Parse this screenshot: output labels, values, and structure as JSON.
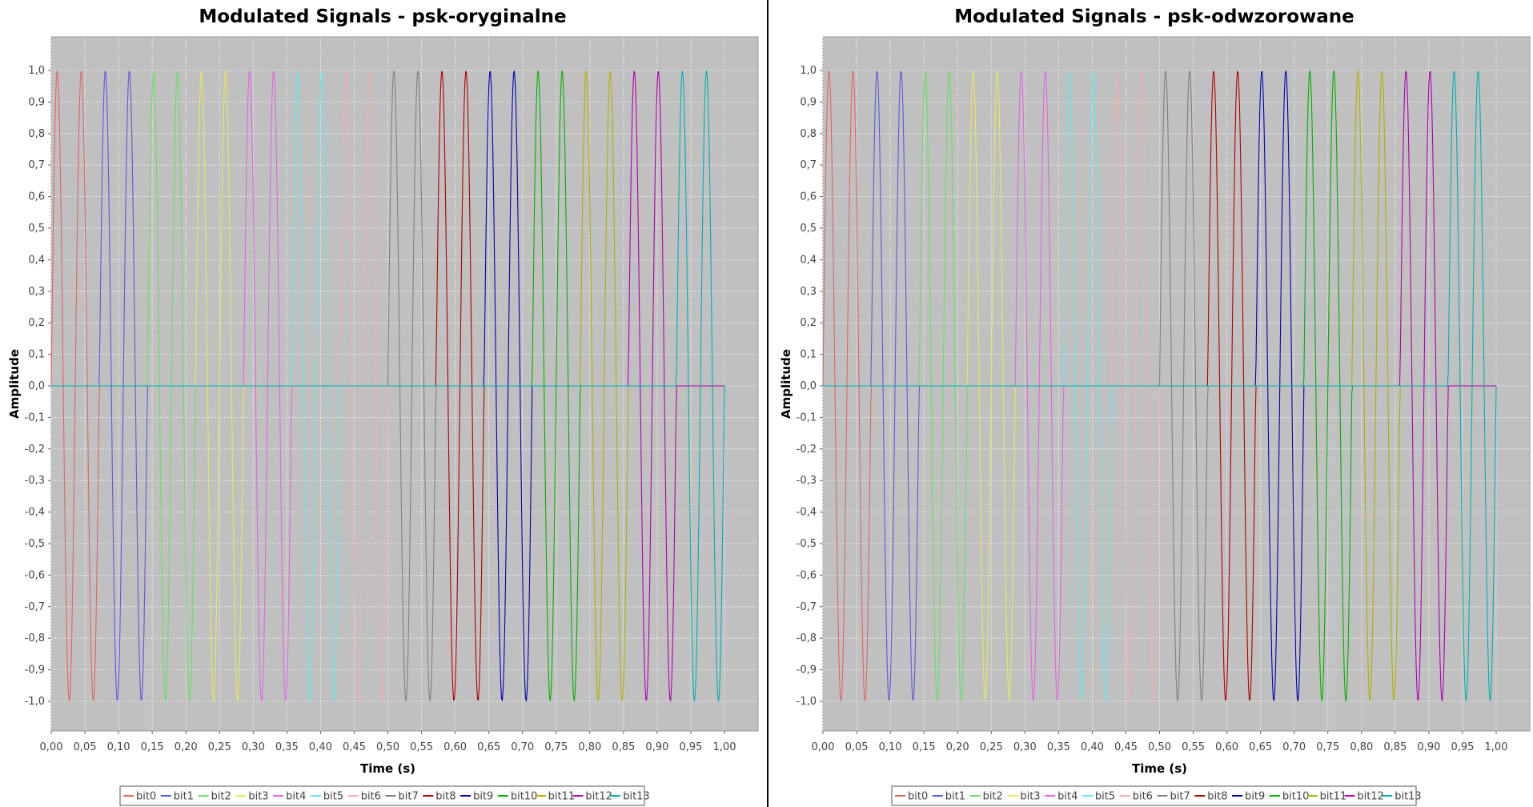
{
  "chart_data": [
    {
      "type": "line",
      "title": "Modulated Signals - psk-oryginalne",
      "xlabel": "Time (s)",
      "ylabel": "Amplitude",
      "xlim": [
        0.0,
        1.05
      ],
      "ylim": [
        -1.1,
        1.1
      ],
      "x_ticks": [
        "0,00",
        "0,05",
        "0,10",
        "0,15",
        "0,20",
        "0,25",
        "0,30",
        "0,35",
        "0,40",
        "0,45",
        "0,50",
        "0,55",
        "0,60",
        "0,65",
        "0,70",
        "0,75",
        "0,80",
        "0,85",
        "0,90",
        "0,95",
        "1,00"
      ],
      "y_ticks": [
        "1,0",
        "0,9",
        "0,8",
        "0,7",
        "0,6",
        "0,5",
        "0,4",
        "0,3",
        "0,2",
        "0,1",
        "0,0",
        "-0,1",
        "-0,2",
        "-0,3",
        "-0,4",
        "-0,5",
        "-0,6",
        "-0,7",
        "-0,8",
        "-0,9",
        "-1,0"
      ],
      "grid": true,
      "legend_position": "bottom",
      "signal": "sine, 2 cycles per bit, amplitude 1, 0 outside each bit's interval",
      "bit_duration": 0.0714,
      "series": [
        {
          "name": "bit0",
          "color": "#e06666",
          "start": 0.0
        },
        {
          "name": "bit1",
          "color": "#5b5bdc",
          "start": 0.0714
        },
        {
          "name": "bit2",
          "color": "#66e066",
          "start": 0.1429
        },
        {
          "name": "bit3",
          "color": "#e8e85a",
          "start": 0.2143
        },
        {
          "name": "bit4",
          "color": "#e066e0",
          "start": 0.2857
        },
        {
          "name": "bit5",
          "color": "#66e8e8",
          "start": 0.3571
        },
        {
          "name": "bit6",
          "color": "#f0b0b0",
          "start": 0.4286
        },
        {
          "name": "bit7",
          "color": "#808080",
          "start": 0.5
        },
        {
          "name": "bit8",
          "color": "#b00000",
          "start": 0.5714
        },
        {
          "name": "bit9",
          "color": "#0000b0",
          "start": 0.6429
        },
        {
          "name": "bit10",
          "color": "#00b000",
          "start": 0.7143
        },
        {
          "name": "bit11",
          "color": "#b0b000",
          "start": 0.7857
        },
        {
          "name": "bit12",
          "color": "#b000b0",
          "start": 0.8571
        },
        {
          "name": "bit13",
          "color": "#00b0b0",
          "start": 0.9286
        }
      ]
    },
    {
      "type": "line",
      "title": "Modulated Signals - psk-odwzorowane",
      "xlabel": "Time (s)",
      "ylabel": "Amplitude",
      "xlim": [
        0.0,
        1.05
      ],
      "ylim": [
        -1.1,
        1.1
      ],
      "x_ticks": [
        "0,00",
        "0,05",
        "0,10",
        "0,15",
        "0,20",
        "0,25",
        "0,30",
        "0,35",
        "0,40",
        "0,45",
        "0,50",
        "0,55",
        "0,60",
        "0,65",
        "0,70",
        "0,75",
        "0,80",
        "0,85",
        "0,90",
        "0,95",
        "1,00"
      ],
      "y_ticks": [
        "1,0",
        "0,9",
        "0,8",
        "0,7",
        "0,6",
        "0,5",
        "0,4",
        "0,3",
        "0,2",
        "0,1",
        "0,0",
        "-0,1",
        "-0,2",
        "-0,3",
        "-0,4",
        "-0,5",
        "-0,6",
        "-0,7",
        "-0,8",
        "-0,9",
        "-1,0"
      ],
      "grid": true,
      "legend_position": "bottom",
      "signal": "sine, 2 cycles per bit, amplitude 1, 0 outside each bit's interval",
      "bit_duration": 0.0714,
      "series": [
        {
          "name": "bit0",
          "color": "#e06666",
          "start": 0.0
        },
        {
          "name": "bit1",
          "color": "#5b5bdc",
          "start": 0.0714
        },
        {
          "name": "bit2",
          "color": "#66e066",
          "start": 0.1429
        },
        {
          "name": "bit3",
          "color": "#e8e85a",
          "start": 0.2143
        },
        {
          "name": "bit4",
          "color": "#e066e0",
          "start": 0.2857
        },
        {
          "name": "bit5",
          "color": "#66e8e8",
          "start": 0.3571
        },
        {
          "name": "bit6",
          "color": "#f0b0b0",
          "start": 0.4286
        },
        {
          "name": "bit7",
          "color": "#808080",
          "start": 0.5
        },
        {
          "name": "bit8",
          "color": "#b00000",
          "start": 0.5714
        },
        {
          "name": "bit9",
          "color": "#0000b0",
          "start": 0.6429
        },
        {
          "name": "bit10",
          "color": "#00b000",
          "start": 0.7143
        },
        {
          "name": "bit11",
          "color": "#b0b000",
          "start": 0.7857
        },
        {
          "name": "bit12",
          "color": "#b000b0",
          "start": 0.8571
        },
        {
          "name": "bit13",
          "color": "#00b0b0",
          "start": 0.9286
        }
      ]
    }
  ],
  "colors": {
    "plot_background": "#c0c0c0",
    "grid": "#ffffff",
    "divider": "#000000"
  }
}
